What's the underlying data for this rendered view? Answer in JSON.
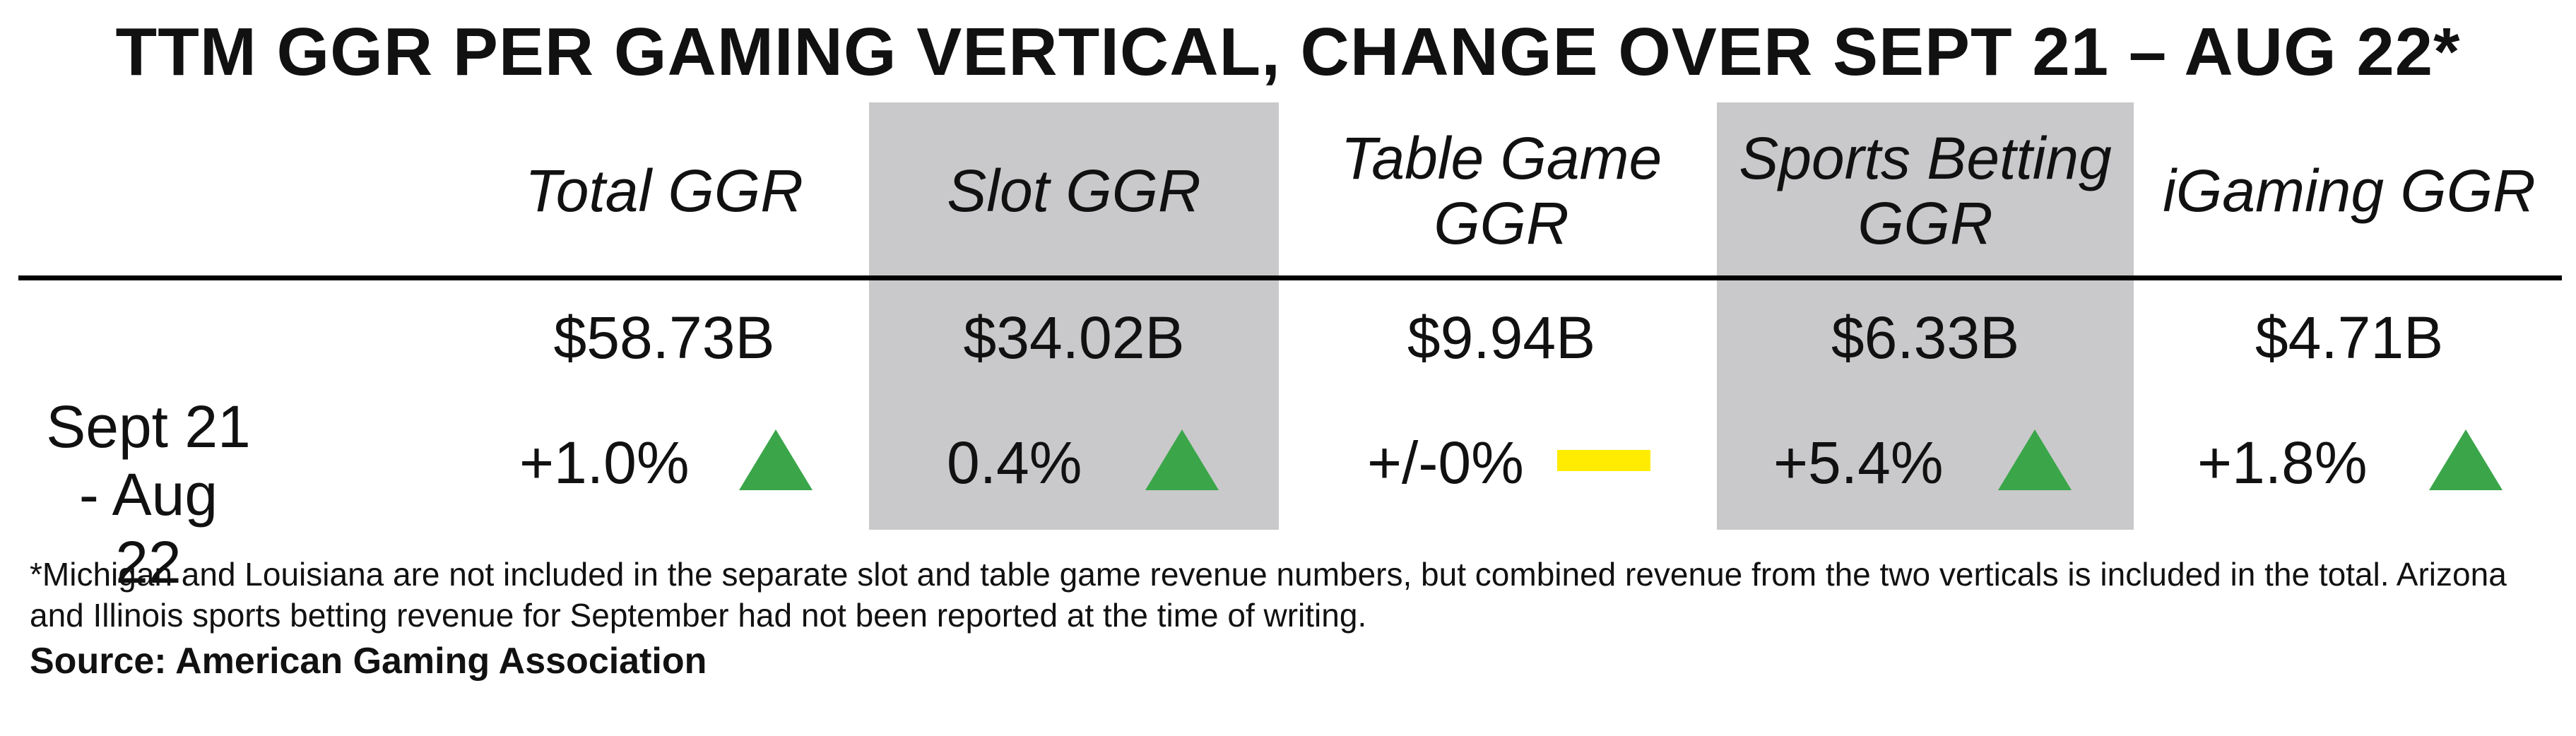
{
  "title": "TTM GGR PER GAMING VERTICAL, CHANGE OVER SEPT 21 – AUG 22*",
  "colors": {
    "shade": "#c9c9cb",
    "up": "#3aa649",
    "flat": "#ffec00",
    "rule": "#000000"
  },
  "chart_data": {
    "type": "table",
    "title": "TTM GGR PER GAMING VERTICAL, CHANGE OVER SEPT 21 – AUG 22*",
    "row_label": "Sept 21 - Aug 22",
    "columns": [
      {
        "header": "Total GGR",
        "value": "$58.73B",
        "value_billions": 58.73,
        "change": "+1.0%",
        "change_pct": 1.0,
        "direction": "up",
        "shaded": false
      },
      {
        "header": "Slot GGR",
        "value": "$34.02B",
        "value_billions": 34.02,
        "change": "0.4%",
        "change_pct": 0.4,
        "direction": "up",
        "shaded": true
      },
      {
        "header": "Table Game GGR",
        "value": "$9.94B",
        "value_billions": 9.94,
        "change": "+/-0%",
        "change_pct": 0.0,
        "direction": "flat",
        "shaded": false
      },
      {
        "header": "Sports Betting GGR",
        "value": "$6.33B",
        "value_billions": 6.33,
        "change": "+5.4%",
        "change_pct": 5.4,
        "direction": "up",
        "shaded": true
      },
      {
        "header": "iGaming GGR",
        "value": "$4.71B",
        "value_billions": 4.71,
        "change": "+1.8%",
        "change_pct": 1.8,
        "direction": "up",
        "shaded": false
      }
    ]
  },
  "footnote": "*Michigan and Louisiana are not included in the separate slot and table game revenue numbers, but combined revenue from the two verticals is included in the total. Arizona and Illinois sports betting revenue for September had not been reported at the time of writing.",
  "source": "Source: American Gaming Association"
}
